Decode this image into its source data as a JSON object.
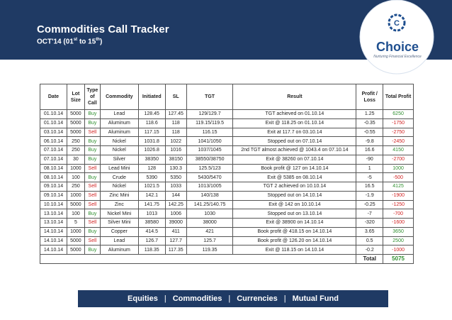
{
  "header": {
    "title": "Commodities Call Tracker",
    "subtitle_main": "OCT'14 (01",
    "subtitle_sup1": "st",
    "subtitle_mid": " to 15",
    "subtitle_sup2": "th",
    "subtitle_end": ")"
  },
  "logo": {
    "letter": "C",
    "name": "Choice",
    "tagline": "Nurturing Financial Excellence"
  },
  "table": {
    "headers": [
      "Date",
      "Lot Size",
      "Type of Call",
      "Commodity",
      "Initiated",
      "SL",
      "TGT",
      "Result",
      "Profit / Loss",
      "Total Profit"
    ],
    "rows": [
      [
        "01.10.14",
        "5000",
        "Buy",
        "Lead",
        "128.45",
        "127.45",
        "129/129.7",
        "TGT achieved on 01.10.14",
        "1.25",
        "6250"
      ],
      [
        "01.10.14",
        "5000",
        "Buy",
        "Aluminum",
        "118.6",
        "118",
        "119.15/119.5",
        "Exit @ 118.25 on 01.10.14",
        "-0.35",
        "-1750"
      ],
      [
        "03.10.14",
        "5000",
        "Sell",
        "Aluminum",
        "117.15",
        "118",
        "116.15",
        "Exit at 117.7 on 03.10.14",
        "-0.55",
        "-2750"
      ],
      [
        "06.10.14",
        "250",
        "Buy",
        "Nickel",
        "1031.8",
        "1022",
        "1041/1050",
        "Stopped out on 07.10.14",
        "-9.8",
        "-2450"
      ],
      [
        "07.10.14",
        "250",
        "Buy",
        "Nickel",
        "1026.8",
        "1016",
        "1037/1045",
        "2nd TGT almost achieved @ 1043.4 on 07.10.14",
        "16.6",
        "4150"
      ],
      [
        "07.10.14",
        "30",
        "Buy",
        "Silver",
        "38350",
        "38150",
        "38550/38750",
        "Exit @ 38260 on 07.10.14",
        "-90",
        "-2700"
      ],
      [
        "08.10.14",
        "1000",
        "Sell",
        "Lead Mini",
        "128",
        "130.3",
        "125.5/123",
        "Book profit @ 127 on 14.10.14",
        "1",
        "1000"
      ],
      [
        "08.10.14",
        "100",
        "Buy",
        "Crude",
        "5390",
        "5350",
        "5430/5470",
        "Exit @ 5385 on 08.10.14",
        "-5",
        "-500"
      ],
      [
        "09.10.14",
        "250",
        "Sell",
        "Nickel",
        "1021.5",
        "1033",
        "1013/1005",
        "TGT 2 achieved on 10.10.14",
        "16.5",
        "4125"
      ],
      [
        "09.10.14",
        "1000",
        "Sell",
        "Zinc Mini",
        "142.1",
        "144",
        "140/138",
        "Stopped out on 14.10.14",
        "-1.9",
        "-1900"
      ],
      [
        "10.10.14",
        "5000",
        "Sell",
        "Zinc",
        "141.75",
        "142.25",
        "141.25/140.75",
        "Exit @ 142 on 10.10.14",
        "-0.25",
        "-1250"
      ],
      [
        "13.10.14",
        "100",
        "Buy",
        "Nickel Mini",
        "1013",
        "1006",
        "1030",
        "Stopped out on 13.10.14",
        "-7",
        "-700"
      ],
      [
        "13.10.14",
        "5",
        "Sell",
        "Silver Mini",
        "38580",
        "39000",
        "38000",
        "Exit @ 38900 on 14.10.14",
        "-320",
        "-1600"
      ],
      [
        "14.10.14",
        "1000",
        "Buy",
        "Copper",
        "414.5",
        "411",
        "421",
        "Book profit @ 418.15 on 14.10.14",
        "3.65",
        "3650"
      ],
      [
        "14.10.14",
        "5000",
        "Sell",
        "Lead",
        "126.7",
        "127.7",
        "125.7",
        "Book profit @ 126.20 on 14.10.14",
        "0.5",
        "2500"
      ],
      [
        "14.10.14",
        "5000",
        "Buy",
        "Aluminum",
        "118.35",
        "117.35",
        "119.35",
        "Exit @ 118.15 on 14.10.14",
        "-0.2",
        "-1000"
      ]
    ],
    "total_label": "Total",
    "total_value": "5075"
  },
  "footer": {
    "items": [
      "Equities",
      "Commodities",
      "Currencies",
      "Mutual Fund"
    ],
    "separator": "|"
  },
  "colors": {
    "navy": "#1f3a64",
    "buy_green": "#2f8f2f",
    "sell_red": "#d22222",
    "logo_blue": "#1f4f8f"
  }
}
